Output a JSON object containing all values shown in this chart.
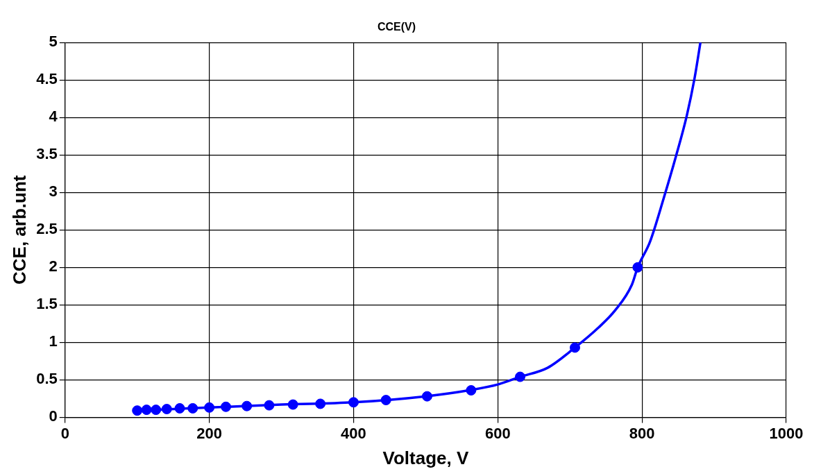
{
  "chart_data": {
    "type": "scatter",
    "title": "CCE(V)",
    "xlabel": "Voltage, V",
    "ylabel": "CCE, arb.unt",
    "xlim": [
      0,
      1000
    ],
    "xticks": [
      0,
      200,
      400,
      600,
      800,
      1000
    ],
    "ylim": [
      0,
      5
    ],
    "yticks": [
      0,
      0.5,
      1,
      1.5,
      2,
      2.5,
      3,
      3.5,
      4,
      4.5,
      5
    ],
    "grid": true,
    "marker": "circle",
    "series": [
      {
        "type": "scatter",
        "color": "#0000ff",
        "x": [
          100,
          113,
          126,
          141,
          159,
          177,
          200,
          223,
          252,
          283,
          316,
          354,
          400,
          445,
          502,
          563,
          631,
          707,
          794
        ],
        "values": [
          0.09,
          0.1,
          0.1,
          0.11,
          0.12,
          0.12,
          0.13,
          0.14,
          0.15,
          0.16,
          0.17,
          0.18,
          0.2,
          0.23,
          0.28,
          0.36,
          0.54,
          0.93,
          2.0
        ]
      },
      {
        "type": "line",
        "color": "#0000ff",
        "marker": "none",
        "line_style": "solid",
        "x": [
          100,
          200,
          300,
          400,
          500,
          560,
          601,
          631,
          669,
          707,
          740,
          763,
          786,
          794,
          811,
          830,
          847,
          862,
          873,
          881
        ],
        "values": [
          0.09,
          0.13,
          0.17,
          0.2,
          0.28,
          0.36,
          0.44,
          0.54,
          0.66,
          0.93,
          1.2,
          1.43,
          1.77,
          2.0,
          2.34,
          2.92,
          3.48,
          4.02,
          4.53,
          5.0
        ]
      }
    ]
  }
}
